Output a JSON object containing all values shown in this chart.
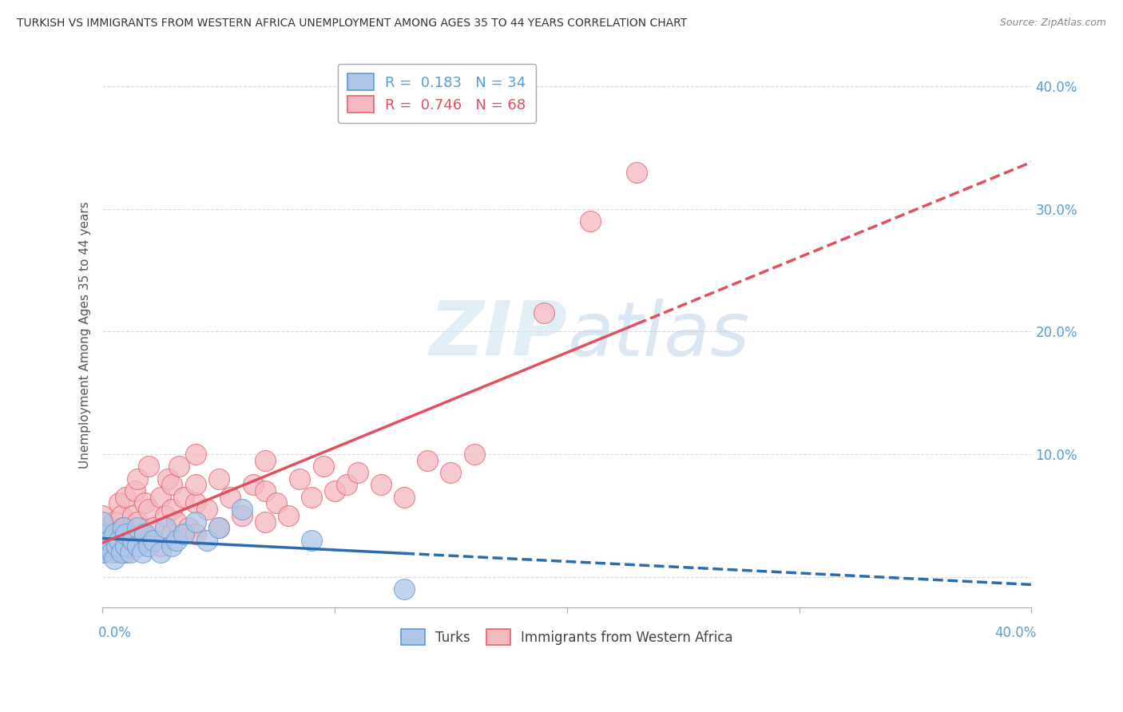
{
  "title": "TURKISH VS IMMIGRANTS FROM WESTERN AFRICA UNEMPLOYMENT AMONG AGES 35 TO 44 YEARS CORRELATION CHART",
  "source": "Source: ZipAtlas.com",
  "ylabel": "Unemployment Among Ages 35 to 44 years",
  "turks_color": "#aec6e8",
  "turks_edge_color": "#5b9bd5",
  "western_color": "#f4b8c1",
  "western_edge_color": "#e8606a",
  "turks_line_color": "#2b6cb0",
  "western_line_color": "#e05060",
  "xlim": [
    0.0,
    0.4
  ],
  "ylim": [
    -0.025,
    0.42
  ],
  "turks_scatter_x": [
    0.0,
    0.0,
    0.0,
    0.0,
    0.002,
    0.003,
    0.004,
    0.005,
    0.005,
    0.006,
    0.007,
    0.008,
    0.009,
    0.01,
    0.01,
    0.012,
    0.013,
    0.015,
    0.015,
    0.017,
    0.018,
    0.02,
    0.022,
    0.025,
    0.027,
    0.03,
    0.032,
    0.035,
    0.04,
    0.045,
    0.05,
    0.06,
    0.09,
    0.13
  ],
  "turks_scatter_y": [
    0.02,
    0.03,
    0.035,
    0.045,
    0.025,
    0.03,
    0.02,
    0.015,
    0.035,
    0.025,
    0.03,
    0.02,
    0.04,
    0.025,
    0.035,
    0.02,
    0.03,
    0.025,
    0.04,
    0.02,
    0.035,
    0.025,
    0.03,
    0.02,
    0.04,
    0.025,
    0.03,
    0.035,
    0.045,
    0.03,
    0.04,
    0.055,
    0.03,
    -0.01
  ],
  "western_scatter_x": [
    0.0,
    0.0,
    0.0,
    0.002,
    0.003,
    0.004,
    0.005,
    0.005,
    0.006,
    0.007,
    0.008,
    0.008,
    0.009,
    0.01,
    0.01,
    0.01,
    0.012,
    0.013,
    0.014,
    0.015,
    0.015,
    0.015,
    0.017,
    0.018,
    0.02,
    0.02,
    0.02,
    0.022,
    0.025,
    0.025,
    0.027,
    0.028,
    0.03,
    0.03,
    0.03,
    0.032,
    0.033,
    0.035,
    0.037,
    0.04,
    0.04,
    0.04,
    0.04,
    0.045,
    0.05,
    0.05,
    0.055,
    0.06,
    0.065,
    0.07,
    0.07,
    0.07,
    0.075,
    0.08,
    0.085,
    0.09,
    0.095,
    0.1,
    0.105,
    0.11,
    0.12,
    0.13,
    0.14,
    0.15,
    0.16,
    0.19,
    0.21,
    0.23
  ],
  "western_scatter_y": [
    0.02,
    0.035,
    0.05,
    0.025,
    0.04,
    0.03,
    0.02,
    0.045,
    0.035,
    0.06,
    0.025,
    0.05,
    0.04,
    0.02,
    0.04,
    0.065,
    0.03,
    0.05,
    0.07,
    0.025,
    0.045,
    0.08,
    0.035,
    0.06,
    0.03,
    0.055,
    0.09,
    0.04,
    0.025,
    0.065,
    0.05,
    0.08,
    0.035,
    0.055,
    0.075,
    0.045,
    0.09,
    0.065,
    0.04,
    0.035,
    0.06,
    0.075,
    0.1,
    0.055,
    0.04,
    0.08,
    0.065,
    0.05,
    0.075,
    0.045,
    0.07,
    0.095,
    0.06,
    0.05,
    0.08,
    0.065,
    0.09,
    0.07,
    0.075,
    0.085,
    0.075,
    0.065,
    0.095,
    0.085,
    0.1,
    0.215,
    0.29,
    0.33
  ],
  "background_color": "#ffffff",
  "grid_color": "#d0d0d0"
}
